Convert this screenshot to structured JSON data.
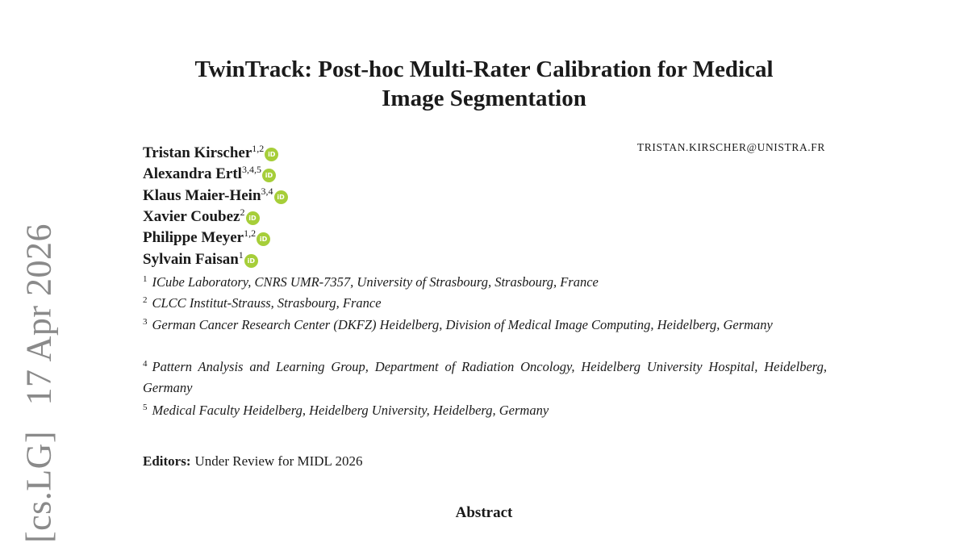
{
  "sidebar": {
    "category": "[cs.LG]",
    "date": "17 Apr 2026"
  },
  "title": {
    "line1": "TwinTrack: Post-hoc Multi-Rater Calibration for Medical",
    "line2": "Image Segmentation"
  },
  "email": "tristan.kirscher@unistra.fr",
  "authors": [
    {
      "name": "Tristan Kirscher",
      "sup": "1,2"
    },
    {
      "name": "Alexandra Ertl",
      "sup": "3,4,5"
    },
    {
      "name": "Klaus Maier-Hein",
      "sup": "3,4"
    },
    {
      "name": "Xavier Coubez",
      "sup": "2"
    },
    {
      "name": "Philippe Meyer",
      "sup": "1,2"
    },
    {
      "name": "Sylvain Faisan",
      "sup": "1"
    }
  ],
  "orcid_icon": {
    "label": "iD",
    "color": "#a6ce39"
  },
  "affiliations": [
    {
      "num": "1",
      "text": "ICube Laboratory, CNRS UMR-7357, University of Strasbourg, Strasbourg, France"
    },
    {
      "num": "2",
      "text": "CLCC Institut-Strauss, Strasbourg, France"
    },
    {
      "num": "3",
      "text": "German Cancer Research Center (DKFZ) Heidelberg, Division of Medical Image Computing, Heidelberg, Germany"
    },
    {
      "num": "4",
      "text": "Pattern Analysis and Learning Group, Department of Radiation Oncology, Heidelberg University Hospital, Heidelberg, Germany"
    },
    {
      "num": "5",
      "text": "Medical Faculty Heidelberg, Heidelberg University, Heidelberg, Germany"
    }
  ],
  "editors": {
    "label": "Editors:",
    "value": "Under Review for MIDL 2026"
  },
  "abstract_heading": "Abstract"
}
